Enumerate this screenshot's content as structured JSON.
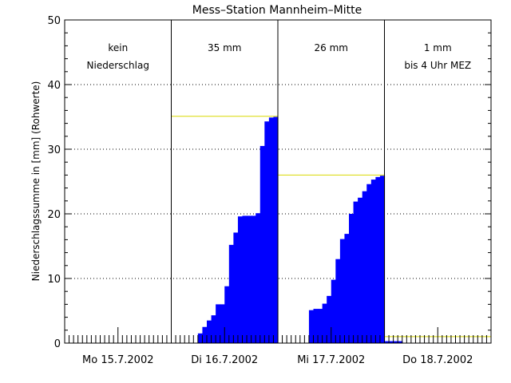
{
  "chart_data": {
    "type": "bar",
    "title": "Mess–Station Mannheim–Mitte",
    "ylabel": "Niederschlagssumme in [mm] (Rohwerte)",
    "xlabel": "",
    "ylim": [
      0,
      50
    ],
    "yticks": [
      "0",
      "10",
      "20",
      "30",
      "40",
      "50"
    ],
    "grid": "horizontal dotted",
    "hours_per_day": 24,
    "days": [
      {
        "label": "Mo 15.7.2002",
        "annotation": [
          "kein",
          "Niederschlag"
        ],
        "total": null,
        "values": [
          0,
          0,
          0,
          0,
          0,
          0,
          0,
          0,
          0,
          0,
          0,
          0,
          0,
          0,
          0,
          0,
          0,
          0,
          0,
          0,
          0,
          0,
          0,
          0
        ]
      },
      {
        "label": "Di 16.7.2002",
        "annotation": [
          "35 mm"
        ],
        "total": 35.1,
        "values": [
          0,
          0,
          0,
          0,
          0,
          0,
          1.5,
          2.5,
          3.5,
          4.3,
          6.0,
          6.0,
          8.8,
          15.2,
          17.1,
          19.6,
          19.7,
          19.7,
          19.7,
          20.1,
          30.5,
          34.3,
          34.9,
          35.0
        ]
      },
      {
        "label": "Mi 17.7.2002",
        "annotation": [
          "26 mm"
        ],
        "total": 26.0,
        "values": [
          0,
          0,
          0,
          0,
          0,
          0,
          0,
          5.1,
          5.3,
          5.3,
          6.1,
          7.3,
          9.8,
          13.0,
          16.1,
          16.9,
          20.0,
          21.9,
          22.5,
          23.5,
          24.6,
          25.3,
          25.7,
          25.9
        ]
      },
      {
        "label": "Do 18.7.2002",
        "annotation": [
          "1 mm",
          "bis 4 Uhr MEZ"
        ],
        "total": 1.0,
        "values": [
          0.3,
          0.3,
          0.3,
          0.3,
          0,
          0,
          0,
          0,
          0,
          0,
          0,
          0,
          0,
          0,
          0,
          0,
          0,
          0,
          0,
          0,
          0,
          0,
          0,
          0
        ]
      }
    ],
    "bar_color": "#0000ff",
    "total_line_color": "#d8d800",
    "axis_color": "#000000"
  }
}
